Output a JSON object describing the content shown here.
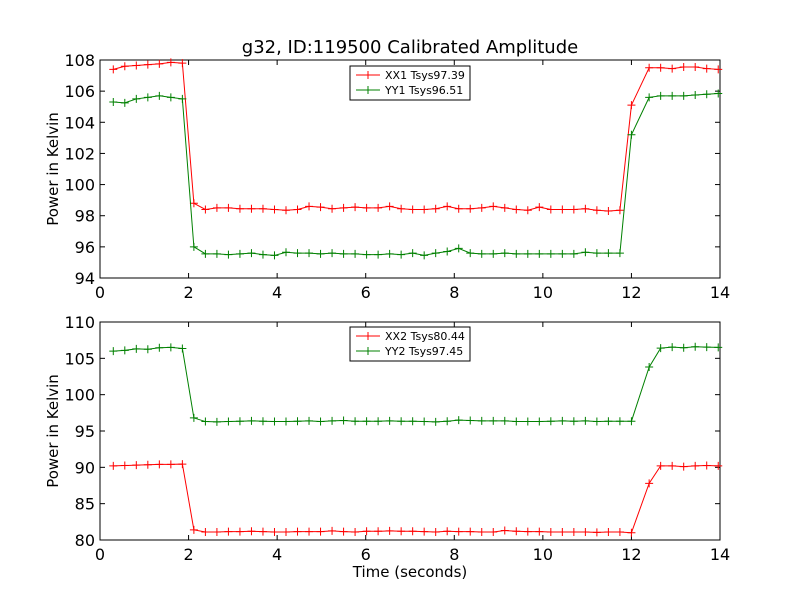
{
  "title": "g32, ID:119500 Calibrated Amplitude",
  "colors": {
    "red": "#ff0000",
    "green": "#008000"
  },
  "chart_data": [
    {
      "type": "line",
      "title": "g32, ID:119500 Calibrated Amplitude",
      "xlabel": "",
      "ylabel": "Power in Kelvin",
      "xlim": [
        0,
        14
      ],
      "ylim": [
        94,
        108
      ],
      "xticks": [
        "0",
        "2",
        "4",
        "6",
        "8",
        "10",
        "12",
        "14"
      ],
      "yticks": [
        "94",
        "96",
        "98",
        "100",
        "102",
        "104",
        "106",
        "108"
      ],
      "grid": false,
      "legend": "top-center",
      "marker": "+",
      "x": [
        0.3,
        0.56,
        0.82,
        1.08,
        1.34,
        1.6,
        1.86,
        2.12,
        2.38,
        2.64,
        2.9,
        3.16,
        3.42,
        3.68,
        3.94,
        4.2,
        4.46,
        4.72,
        4.98,
        5.24,
        5.5,
        5.76,
        6.02,
        6.28,
        6.54,
        6.8,
        7.06,
        7.32,
        7.58,
        7.84,
        8.1,
        8.36,
        8.62,
        8.88,
        9.14,
        9.4,
        9.66,
        9.92,
        10.18,
        10.44,
        10.7,
        10.96,
        11.22,
        11.48,
        11.74,
        12.0,
        12.4,
        12.66,
        12.92,
        13.18,
        13.44,
        13.7,
        13.96
      ],
      "series": [
        {
          "name": "XX1 Tsys97.39",
          "color": "#ff0000",
          "values": [
            107.4,
            107.6,
            107.65,
            107.7,
            107.75,
            107.85,
            107.8,
            98.8,
            98.4,
            98.5,
            98.5,
            98.45,
            98.45,
            98.45,
            98.4,
            98.35,
            98.4,
            98.6,
            98.55,
            98.45,
            98.5,
            98.55,
            98.5,
            98.5,
            98.6,
            98.45,
            98.4,
            98.4,
            98.45,
            98.6,
            98.45,
            98.45,
            98.5,
            98.6,
            98.5,
            98.4,
            98.35,
            98.55,
            98.4,
            98.4,
            98.4,
            98.45,
            98.35,
            98.3,
            98.35,
            105.1,
            107.5,
            107.5,
            107.45,
            107.55,
            107.55,
            107.45,
            107.4
          ]
        },
        {
          "name": "YY1 Tsys96.51",
          "color": "#008000",
          "values": [
            105.3,
            105.25,
            105.5,
            105.6,
            105.7,
            105.6,
            105.5,
            96.0,
            95.55,
            95.55,
            95.5,
            95.55,
            95.6,
            95.5,
            95.45,
            95.65,
            95.6,
            95.6,
            95.55,
            95.6,
            95.55,
            95.55,
            95.5,
            95.5,
            95.55,
            95.5,
            95.6,
            95.45,
            95.6,
            95.7,
            95.9,
            95.6,
            95.55,
            95.55,
            95.6,
            95.55,
            95.55,
            95.55,
            95.55,
            95.55,
            95.55,
            95.65,
            95.6,
            95.6,
            95.6,
            103.2,
            105.6,
            105.7,
            105.7,
            105.7,
            105.75,
            105.8,
            105.85
          ]
        }
      ]
    },
    {
      "type": "line",
      "title": "",
      "xlabel": "Time (seconds)",
      "ylabel": "Power in Kelvin",
      "xlim": [
        0,
        14
      ],
      "ylim": [
        80,
        110
      ],
      "xticks": [
        "0",
        "2",
        "4",
        "6",
        "8",
        "10",
        "12",
        "14"
      ],
      "yticks": [
        "80",
        "85",
        "90",
        "95",
        "100",
        "105",
        "110"
      ],
      "grid": false,
      "legend": "top-center",
      "marker": "+",
      "x": [
        0.3,
        0.56,
        0.82,
        1.08,
        1.34,
        1.6,
        1.86,
        2.12,
        2.38,
        2.64,
        2.9,
        3.16,
        3.42,
        3.68,
        3.94,
        4.2,
        4.46,
        4.72,
        4.98,
        5.24,
        5.5,
        5.76,
        6.02,
        6.28,
        6.54,
        6.8,
        7.06,
        7.32,
        7.58,
        7.84,
        8.1,
        8.36,
        8.62,
        8.88,
        9.14,
        9.4,
        9.66,
        9.92,
        10.18,
        10.44,
        10.7,
        10.96,
        11.22,
        11.48,
        11.74,
        12.0,
        12.4,
        12.66,
        12.92,
        13.18,
        13.44,
        13.7,
        13.96
      ],
      "series": [
        {
          "name": "XX2 Tsys80.44",
          "color": "#ff0000",
          "values": [
            90.2,
            90.25,
            90.3,
            90.35,
            90.4,
            90.4,
            90.45,
            81.4,
            81.1,
            81.1,
            81.15,
            81.15,
            81.2,
            81.15,
            81.1,
            81.1,
            81.15,
            81.15,
            81.15,
            81.25,
            81.15,
            81.1,
            81.2,
            81.2,
            81.25,
            81.2,
            81.2,
            81.15,
            81.1,
            81.2,
            81.15,
            81.15,
            81.1,
            81.1,
            81.3,
            81.2,
            81.15,
            81.15,
            81.1,
            81.1,
            81.1,
            81.1,
            81.05,
            81.1,
            81.1,
            81.0,
            87.8,
            90.2,
            90.2,
            90.1,
            90.2,
            90.25,
            90.2
          ]
        },
        {
          "name": "YY2 Tsys97.45",
          "color": "#008000",
          "values": [
            106.0,
            106.1,
            106.3,
            106.25,
            106.45,
            106.5,
            106.35,
            96.8,
            96.3,
            96.25,
            96.3,
            96.35,
            96.4,
            96.35,
            96.3,
            96.3,
            96.35,
            96.4,
            96.3,
            96.4,
            96.45,
            96.35,
            96.35,
            96.35,
            96.4,
            96.35,
            96.35,
            96.3,
            96.25,
            96.35,
            96.5,
            96.45,
            96.4,
            96.4,
            96.4,
            96.3,
            96.3,
            96.3,
            96.35,
            96.4,
            96.35,
            96.4,
            96.3,
            96.35,
            96.35,
            96.35,
            103.8,
            106.4,
            106.55,
            106.45,
            106.6,
            106.55,
            106.5
          ]
        }
      ]
    }
  ]
}
